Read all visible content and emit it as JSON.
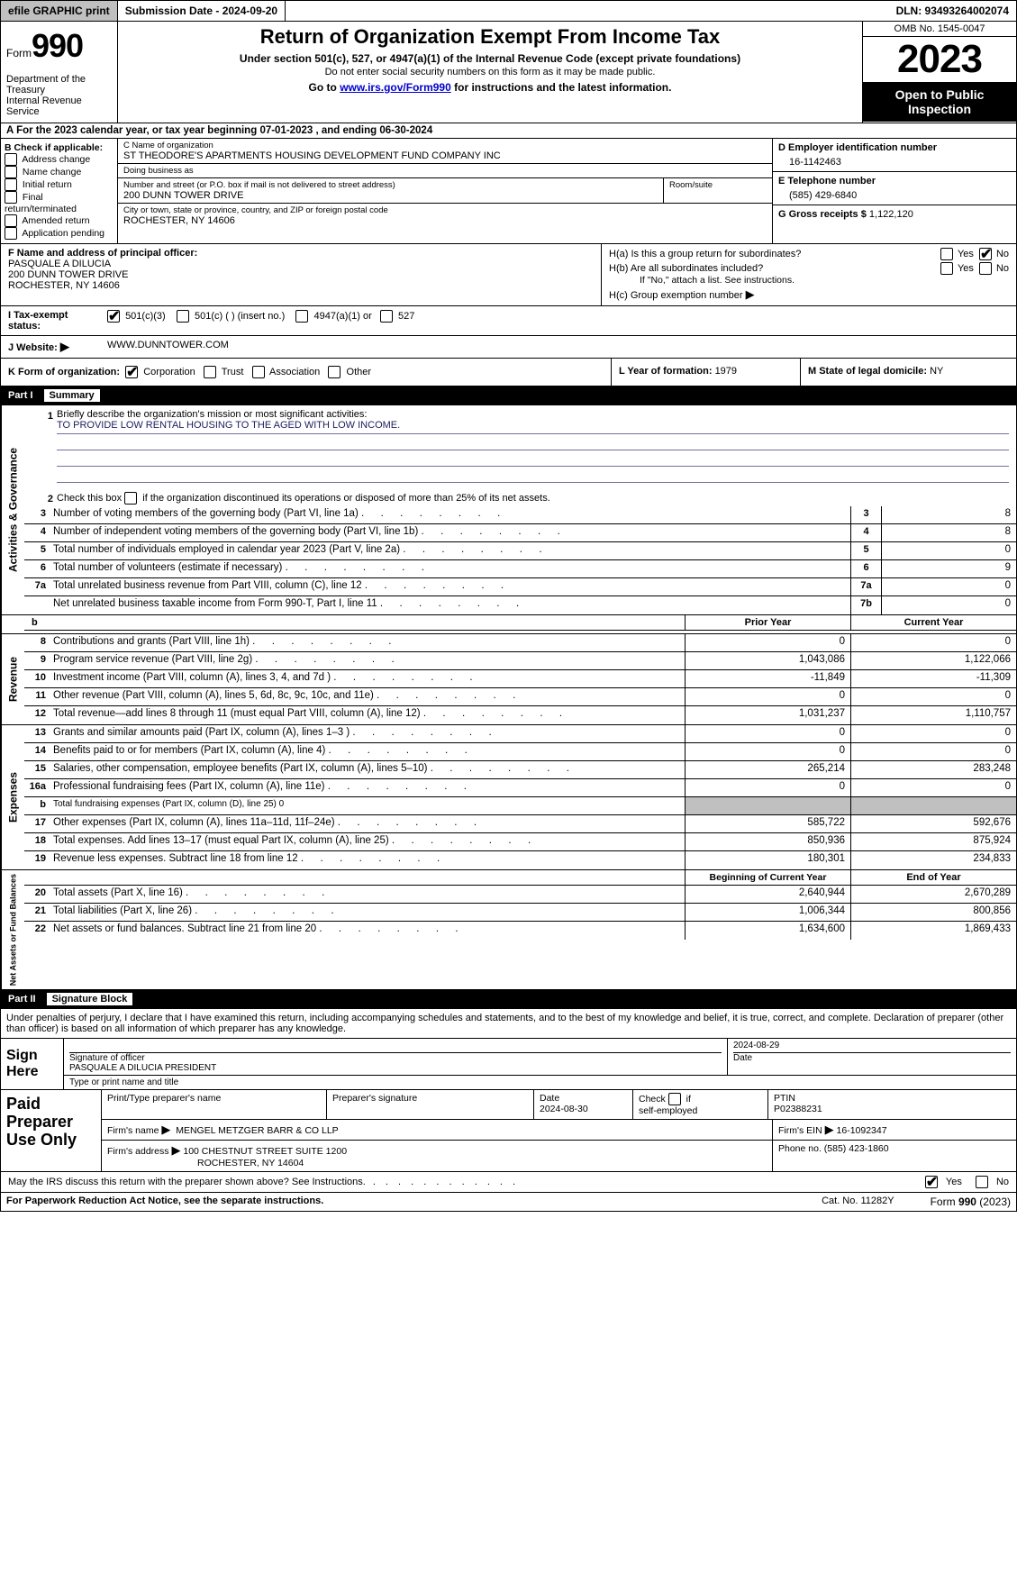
{
  "topbar": {
    "efile": "efile GRAPHIC print",
    "submission_label": "Submission Date - 2024-09-20",
    "dln": "DLN: 93493264002074"
  },
  "header": {
    "form_word": "Form",
    "form_num": "990",
    "dept": "Department of the Treasury",
    "irs": "Internal Revenue Service",
    "title": "Return of Organization Exempt From Income Tax",
    "sub1": "Under section 501(c), 527, or 4947(a)(1) of the Internal Revenue Code (except private foundations)",
    "sub2": "Do not enter social security numbers on this form as it may be made public.",
    "goto_pre": "Go to ",
    "goto_link": "www.irs.gov/Form990",
    "goto_post": " for instructions and the latest information.",
    "omb": "OMB No. 1545-0047",
    "year": "2023",
    "open": "Open to Public Inspection"
  },
  "rowA": {
    "text_pre": "A For the 2023 calendar year, or tax year beginning ",
    "begin": "07-01-2023",
    "mid": " , and ending ",
    "end": "06-30-2024"
  },
  "boxB": {
    "label": "B Check if applicable:",
    "opts": [
      "Address change",
      "Name change",
      "Initial return",
      "Final return/terminated",
      "Amended return",
      "Application pending"
    ]
  },
  "boxC": {
    "name_label": "C Name of organization",
    "name": "ST THEODORE'S APARTMENTS HOUSING DEVELOPMENT FUND COMPANY INC",
    "dba_label": "Doing business as",
    "dba": "",
    "street_label": "Number and street (or P.O. box if mail is not delivered to street address)",
    "street": "200 DUNN TOWER DRIVE",
    "room_label": "Room/suite",
    "city_label": "City or town, state or province, country, and ZIP or foreign postal code",
    "city": "ROCHESTER, NY  14606"
  },
  "boxD": {
    "label": "D Employer identification number",
    "val": "16-1142463"
  },
  "boxE": {
    "label": "E Telephone number",
    "val": "(585) 429-6840"
  },
  "boxG": {
    "label": "G Gross receipts $ ",
    "val": "1,122,120"
  },
  "boxF": {
    "label": "F  Name and address of principal officer:",
    "name": "PASQUALE A DILUCIA",
    "street": "200 DUNN TOWER DRIVE",
    "city": "ROCHESTER, NY  14606"
  },
  "boxH": {
    "a_label": "H(a)  Is this a group return for subordinates?",
    "b_label": "H(b)  Are all subordinates included?",
    "b_note": "If \"No,\" attach a list. See instructions.",
    "c_label": "H(c)  Group exemption number  ",
    "yes": "Yes",
    "no": "No"
  },
  "rowI": {
    "label": "I    Tax-exempt status:",
    "opt1": "501(c)(3)",
    "opt2": "501(c) (   ) (insert no.)",
    "opt3": "4947(a)(1) or",
    "opt4": "527"
  },
  "rowJ": {
    "label": "J   Website: ",
    "arrow": "▶",
    "val": "WWW.DUNNTOWER.COM"
  },
  "rowK": {
    "label": "K Form of organization:",
    "opts": [
      "Corporation",
      "Trust",
      "Association",
      "Other"
    ],
    "l_label": "L Year of formation: ",
    "l_val": "1979",
    "m_label": "M State of legal domicile: ",
    "m_val": "NY"
  },
  "part1": {
    "num": "Part I",
    "title": "Summary"
  },
  "summary": {
    "q1_label": "Briefly describe the organization's mission or most significant activities:",
    "q1_val": "TO PROVIDE LOW RENTAL HOUSING TO THE AGED WITH LOW INCOME.",
    "q2": "Check this box      if the organization discontinued its operations or disposed of more than 25% of its net assets.",
    "lines_ag": [
      {
        "n": "3",
        "t": "Number of voting members of the governing body (Part VI, line 1a)",
        "b": "3",
        "v": "8"
      },
      {
        "n": "4",
        "t": "Number of independent voting members of the governing body (Part VI, line 1b)",
        "b": "4",
        "v": "8"
      },
      {
        "n": "5",
        "t": "Total number of individuals employed in calendar year 2023 (Part V, line 2a)",
        "b": "5",
        "v": "0"
      },
      {
        "n": "6",
        "t": "Total number of volunteers (estimate if necessary)",
        "b": "6",
        "v": "9"
      },
      {
        "n": "7a",
        "t": "Total unrelated business revenue from Part VIII, column (C), line 12",
        "b": "7a",
        "v": "0"
      },
      {
        "n": "",
        "t": "Net unrelated business taxable income from Form 990-T, Part I, line 11",
        "b": "7b",
        "v": "0"
      }
    ],
    "col_prior": "Prior Year",
    "col_curr": "Current Year",
    "b_hdr": "b",
    "revenue": [
      {
        "n": "8",
        "t": "Contributions and grants (Part VIII, line 1h)",
        "p": "0",
        "c": "0"
      },
      {
        "n": "9",
        "t": "Program service revenue (Part VIII, line 2g)",
        "p": "1,043,086",
        "c": "1,122,066"
      },
      {
        "n": "10",
        "t": "Investment income (Part VIII, column (A), lines 3, 4, and 7d )",
        "p": "-11,849",
        "c": "-11,309"
      },
      {
        "n": "11",
        "t": "Other revenue (Part VIII, column (A), lines 5, 6d, 8c, 9c, 10c, and 11e)",
        "p": "0",
        "c": "0"
      },
      {
        "n": "12",
        "t": "Total revenue—add lines 8 through 11 (must equal Part VIII, column (A), line 12)",
        "p": "1,031,237",
        "c": "1,110,757"
      }
    ],
    "expenses": [
      {
        "n": "13",
        "t": "Grants and similar amounts paid (Part IX, column (A), lines 1–3 )",
        "p": "0",
        "c": "0"
      },
      {
        "n": "14",
        "t": "Benefits paid to or for members (Part IX, column (A), line 4)",
        "p": "0",
        "c": "0"
      },
      {
        "n": "15",
        "t": "Salaries, other compensation, employee benefits (Part IX, column (A), lines 5–10)",
        "p": "265,214",
        "c": "283,248"
      },
      {
        "n": "16a",
        "t": "Professional fundraising fees (Part IX, column (A), line 11e)",
        "p": "0",
        "c": "0"
      },
      {
        "n": "b",
        "t": "Total fundraising expenses (Part IX, column (D), line 25) 0",
        "p": "",
        "c": "",
        "shade": true,
        "small": true
      },
      {
        "n": "17",
        "t": "Other expenses (Part IX, column (A), lines 11a–11d, 11f–24e)",
        "p": "585,722",
        "c": "592,676"
      },
      {
        "n": "18",
        "t": "Total expenses. Add lines 13–17 (must equal Part IX, column (A), line 25)",
        "p": "850,936",
        "c": "875,924"
      },
      {
        "n": "19",
        "t": "Revenue less expenses. Subtract line 18 from line 12",
        "p": "180,301",
        "c": "234,833"
      }
    ],
    "na_col1": "Beginning of Current Year",
    "na_col2": "End of Year",
    "netassets": [
      {
        "n": "20",
        "t": "Total assets (Part X, line 16)",
        "p": "2,640,944",
        "c": "2,670,289"
      },
      {
        "n": "21",
        "t": "Total liabilities (Part X, line 26)",
        "p": "1,006,344",
        "c": "800,856"
      },
      {
        "n": "22",
        "t": "Net assets or fund balances. Subtract line 21 from line 20",
        "p": "1,634,600",
        "c": "1,869,433"
      }
    ],
    "side_ag": "Activities & Governance",
    "side_rev": "Revenue",
    "side_exp": "Expenses",
    "side_na": "Net Assets or Fund Balances"
  },
  "part2": {
    "num": "Part II",
    "title": "Signature Block"
  },
  "sig": {
    "intro": "Under penalties of perjury, I declare that I have examined this return, including accompanying schedules and statements, and to the best of my knowledge and belief, it is true, correct, and complete. Declaration of preparer (other than officer) is based on all information of which preparer has any knowledge.",
    "sign_here": "Sign Here",
    "sig_officer_label": "Signature of officer",
    "sig_date": "2024-08-29",
    "date_label": "Date",
    "officer_name": "PASQUALE A DILUCIA  PRESIDENT",
    "name_title_label": "Type or print name and title"
  },
  "paid": {
    "side": "Paid Preparer Use Only",
    "h_name": "Print/Type preparer's name",
    "h_sig": "Preparer's signature",
    "h_date": "Date",
    "date_val": "2024-08-30",
    "h_check": "Check        if self-employed",
    "h_ptin": "PTIN",
    "ptin_val": "P02388231",
    "firm_name_label": "Firm's name   ",
    "firm_name": "MENGEL METZGER BARR & CO LLP",
    "firm_ein_label": "Firm's EIN  ",
    "firm_ein": "16-1092347",
    "firm_addr_label": "Firm's address ",
    "firm_addr1": "100 CHESTNUT STREET SUITE 1200",
    "firm_addr2": "ROCHESTER, NY  14604",
    "phone_label": "Phone no. ",
    "phone": "(585) 423-1860"
  },
  "discuss": {
    "text": "May the IRS discuss this return with the preparer shown above? See Instructions.",
    "yes": "Yes",
    "no": "No"
  },
  "footer": {
    "left": "For Paperwork Reduction Act Notice, see the separate instructions.",
    "mid": "Cat. No. 11282Y",
    "right_pre": "Form ",
    "right_b": "990",
    "right_post": " (2023)"
  },
  "arrow": "▶"
}
